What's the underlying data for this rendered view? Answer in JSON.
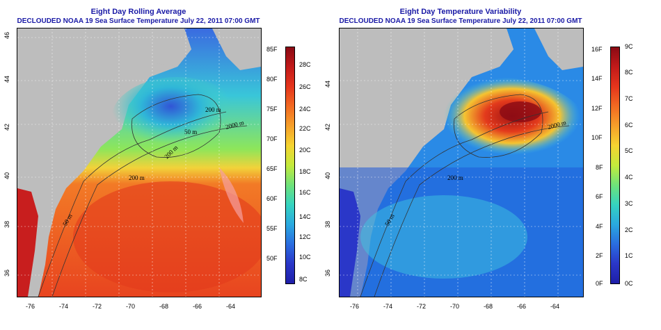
{
  "left_panel": {
    "title_line1": "Eight Day Rolling Average",
    "title_line2": "DECLOUDED NOAA 19 Sea Surface Temperature July 22, 2011 07:00 GMT",
    "x_ticks": [
      "-76",
      "-74",
      "-72",
      "-70",
      "-68",
      "-66",
      "-64"
    ],
    "y_ticks": [
      "46",
      "44",
      "42",
      "40",
      "38",
      "36"
    ],
    "contour_labels": [
      "50 m",
      "200 m",
      "200 m",
      "200 m",
      "2000 m",
      "50 m"
    ],
    "colorbar_f": [
      "85F",
      "80F",
      "75F",
      "70F",
      "65F",
      "60F",
      "55F",
      "50F"
    ],
    "colorbar_c": [
      "28C",
      "26C",
      "24C",
      "22C",
      "20C",
      "18C",
      "16C",
      "14C",
      "12C",
      "10C",
      "8C"
    ]
  },
  "right_panel": {
    "title_line1": "Eight Day Temperature Variability",
    "title_line2": "DECLOUDED NOAA 19 Sea Surface Temperature July 22, 2011 07:00 GMT",
    "x_ticks": [
      "-76",
      "-74",
      "-72",
      "-70",
      "-68",
      "-66",
      "-64"
    ],
    "y_ticks": [
      "44",
      "42",
      "40",
      "38",
      "36"
    ],
    "contour_labels": [
      "200 m",
      "2000 m",
      "50 m"
    ],
    "colorbar_f": [
      "16F",
      "14F",
      "12F",
      "10F",
      "8F",
      "6F",
      "4F",
      "2F",
      "0F"
    ],
    "colorbar_c": [
      "9C",
      "8C",
      "7C",
      "6C",
      "5C",
      "4C",
      "3C",
      "2C",
      "1C",
      "0C"
    ]
  },
  "colors": {
    "land": "#bdbdbd",
    "title": "#1a1aa6"
  }
}
